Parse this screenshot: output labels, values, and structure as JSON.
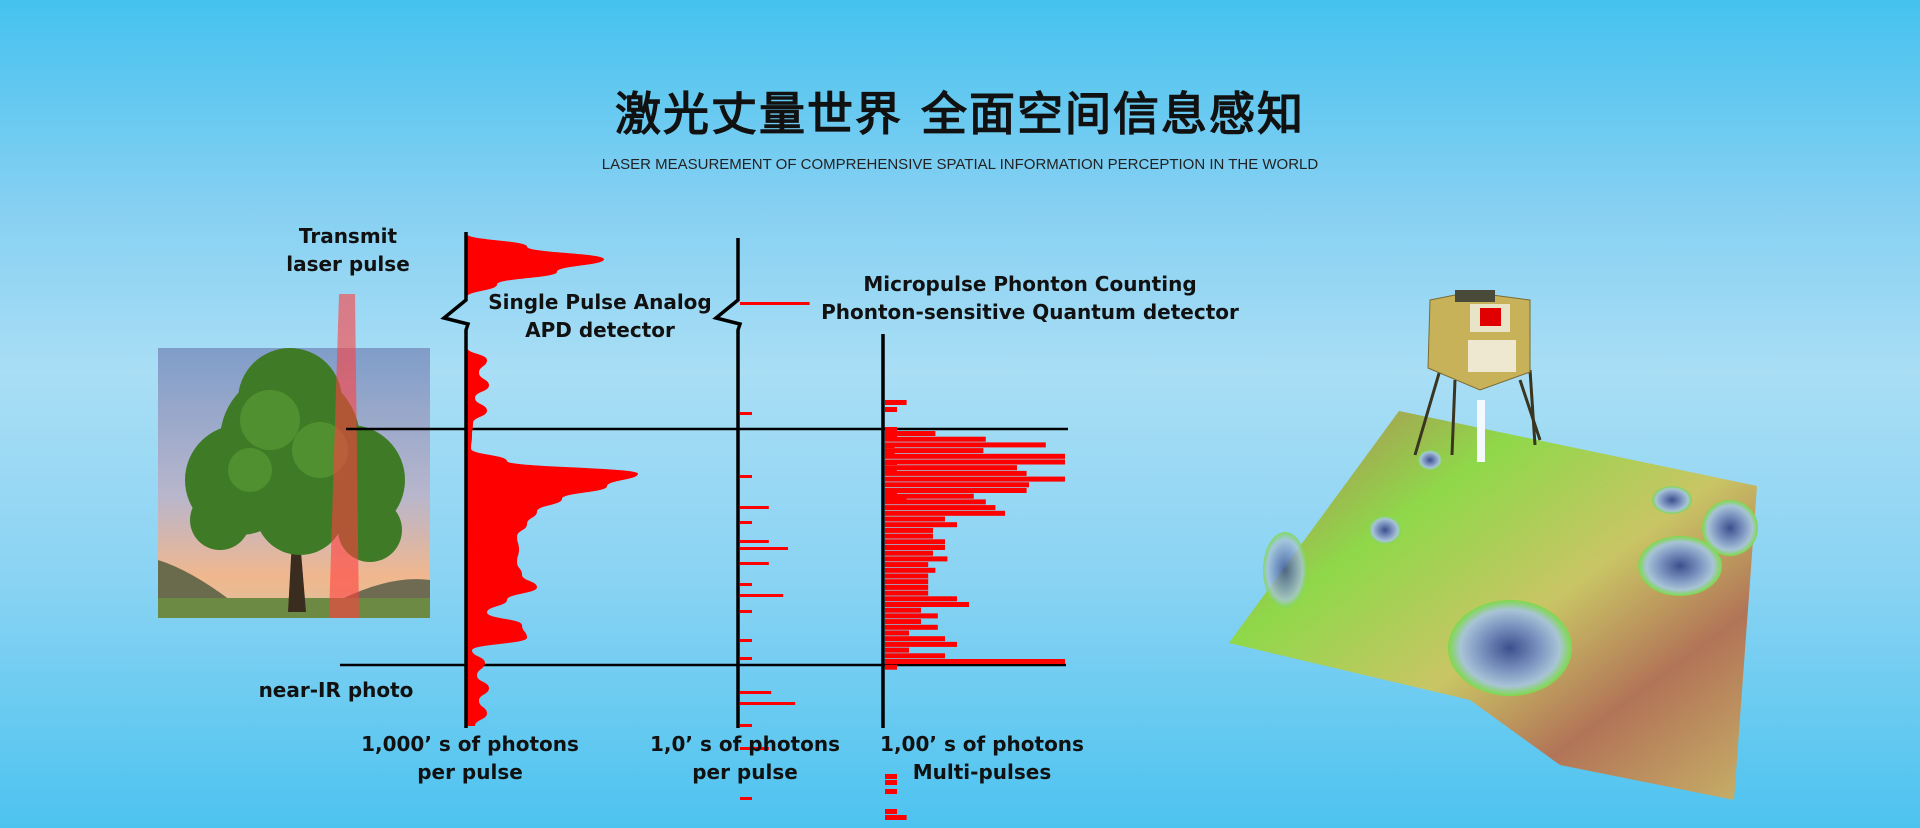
{
  "header": {
    "title": "激光丈量世界 全面空间信息感知",
    "subtitle": "LASER MEASUREMENT OF COMPREHENSIVE SPATIAL INFORMATION PERCEPTION IN THE WORLD"
  },
  "diagram": {
    "transmit_label": [
      "Transmit",
      "laser pulse"
    ],
    "photo_label": "near-IR photo",
    "analog_label": [
      "Single Pulse Analog",
      "APD detector"
    ],
    "quantum_label": [
      "Micropulse Phonton Counting",
      "Phonton-sensitive Quantum detector"
    ],
    "axis1_caption": [
      "1,000’ s of photons",
      "per pulse"
    ],
    "axis2_caption": [
      "1,0’ s of photons",
      "per pulse"
    ],
    "axis3_caption": [
      "1,00’ s of photons",
      "Multi-pulses"
    ],
    "colors": {
      "signal": "#ff0000",
      "beam": "#ff5a5a",
      "axis": "#000000"
    },
    "analog_profile": [
      0,
      60,
      137,
      90,
      30,
      0,
      0,
      0,
      0,
      0,
      20,
      12,
      22,
      8,
      20,
      6,
      5,
      4,
      40,
      171,
      140,
      95,
      70,
      60,
      50,
      52,
      50,
      55,
      70,
      40,
      20,
      55,
      60,
      5,
      18,
      10,
      22,
      12,
      20,
      8
    ],
    "single_photon_counts": [
      58,
      10,
      10,
      24,
      10,
      24,
      40,
      24,
      10,
      36,
      10,
      10,
      10,
      26,
      46,
      10,
      24,
      10
    ],
    "multi_pulse_counts": [
      18,
      10,
      10,
      10,
      8,
      8,
      10,
      10,
      10,
      18,
      42,
      84,
      134,
      82,
      150,
      150,
      110,
      118,
      150,
      120,
      118,
      74,
      84,
      92,
      100,
      50,
      60,
      40,
      40,
      50,
      50,
      40,
      52,
      36,
      42,
      36,
      36,
      36,
      36,
      60,
      70,
      30,
      44,
      30,
      44,
      20,
      50,
      60,
      20,
      50,
      150,
      10,
      10,
      10,
      10,
      10,
      18
    ]
  },
  "icons": [
    "tree-photo",
    "lunar-lander",
    "lunar-terrain-map",
    "china-flag"
  ]
}
